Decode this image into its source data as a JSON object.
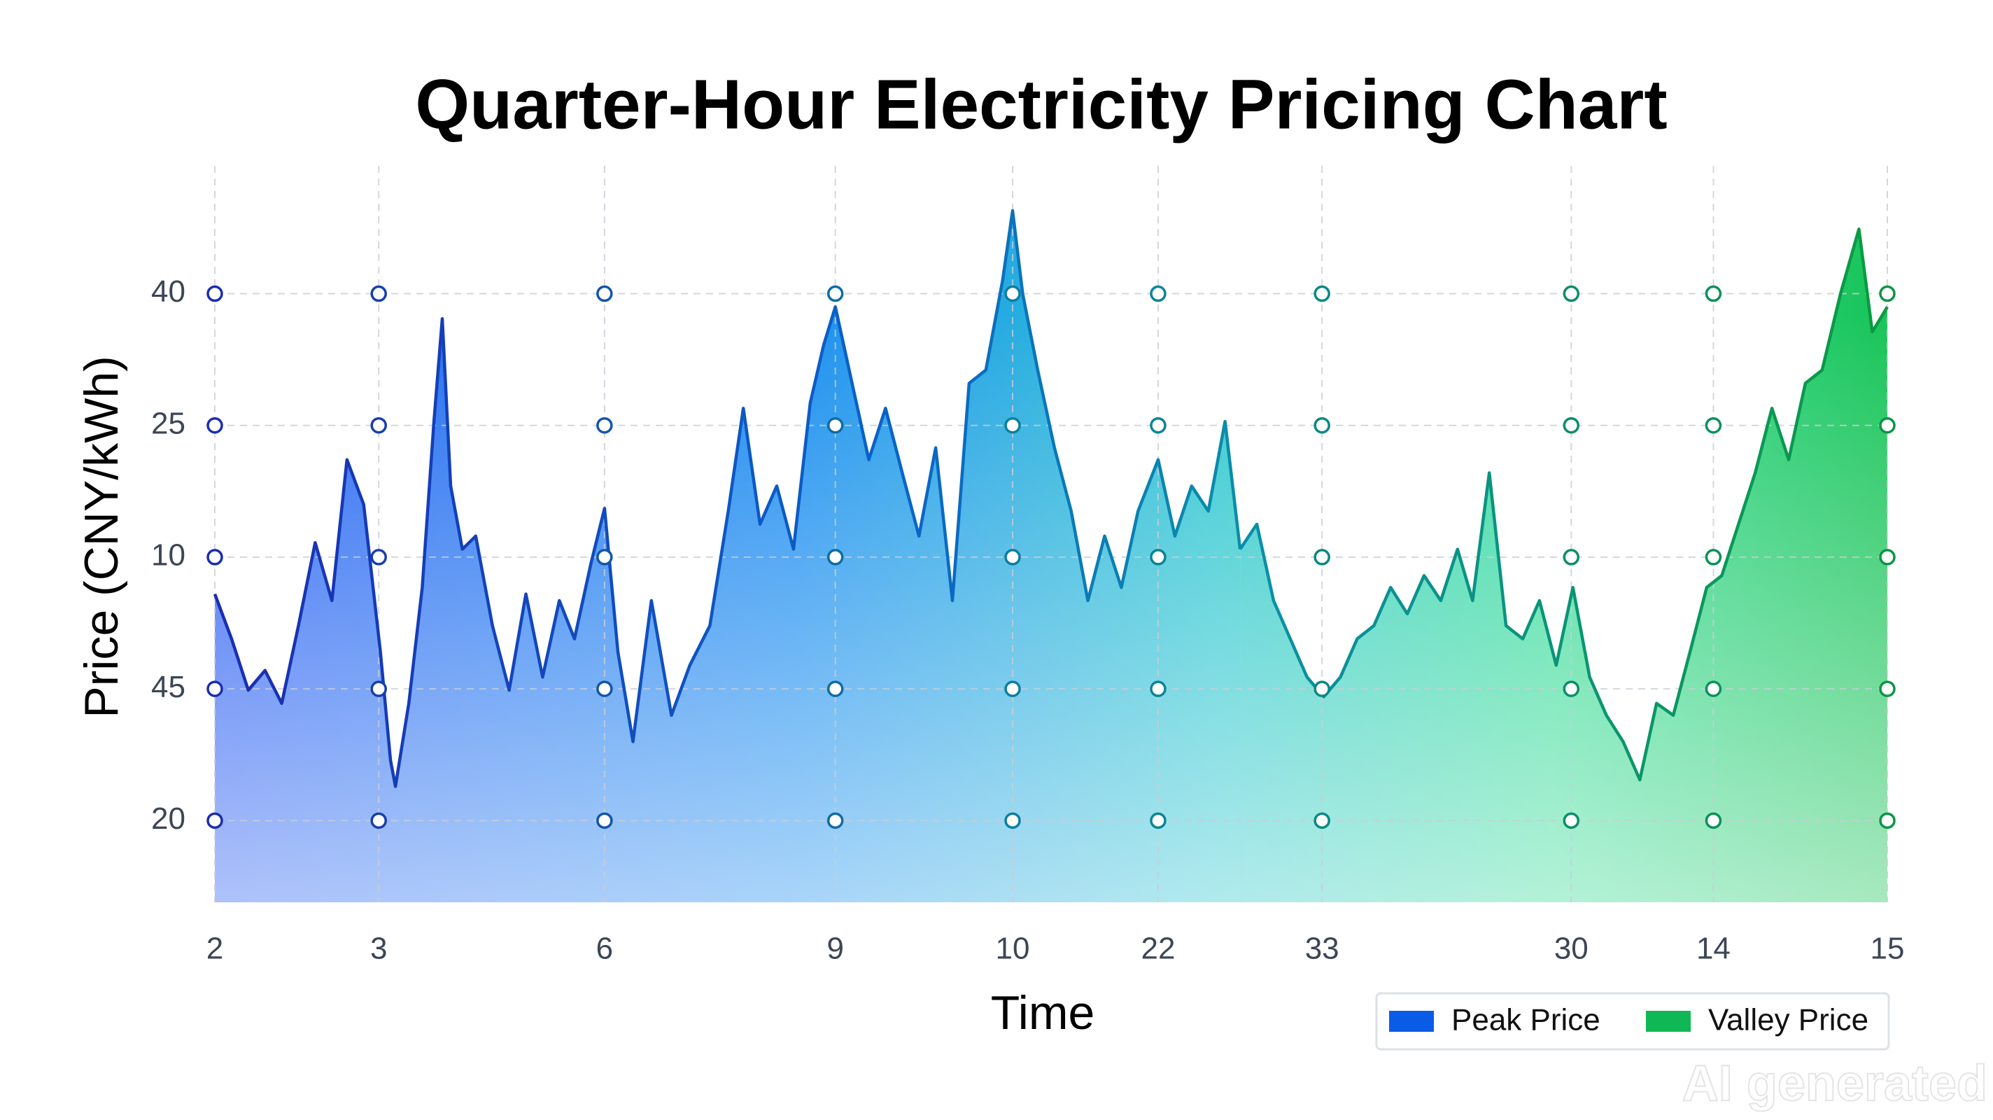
{
  "chart_data": {
    "type": "area",
    "title": "Quarter-Hour Electricity Pricing Chart",
    "xlabel": "Time",
    "ylabel": "Price (CNY/kWh)",
    "xlim": [
      0,
      100
    ],
    "ylim": [
      -0.62,
      4.97
    ],
    "xticks": [
      {
        "value": 0,
        "label": "2"
      },
      {
        "value": 9.8,
        "label": "3"
      },
      {
        "value": 23.3,
        "label": "6"
      },
      {
        "value": 37.1,
        "label": "9"
      },
      {
        "value": 47.7,
        "label": "10"
      },
      {
        "value": 56.4,
        "label": "22"
      },
      {
        "value": 66.2,
        "label": "33"
      },
      {
        "value": 81.1,
        "label": "30"
      },
      {
        "value": 89.6,
        "label": "14"
      },
      {
        "value": 100,
        "label": "15"
      }
    ],
    "yticks": [
      {
        "value": 0,
        "label": "20"
      },
      {
        "value": 1,
        "label": "45"
      },
      {
        "value": 2,
        "label": "10"
      },
      {
        "value": 3,
        "label": "25"
      },
      {
        "value": 4,
        "label": "40"
      }
    ],
    "grid": true,
    "legend": "lower right",
    "series": [
      {
        "name": "Peak Price",
        "color": "#0a5ce6",
        "x": [
          0,
          1,
          2,
          3,
          4,
          5,
          6,
          7,
          7.9,
          8.9,
          9.9,
          10.5,
          10.8,
          11.6,
          12.4,
          13.1,
          13.6,
          14.1,
          14.8,
          15.6,
          16.6,
          17.6,
          18.6,
          19.6,
          20.6,
          21.5,
          22.5,
          23.3,
          24.1,
          25,
          26.1,
          27.3,
          28.4,
          29.6,
          30.7,
          31.6,
          32.6,
          33.6,
          34.6,
          35.6,
          36.4,
          37.1,
          38.1,
          39.1,
          40.1,
          41.1,
          42.1,
          43.1,
          44.1,
          45.1,
          46.1,
          47.1,
          47.7,
          48.3,
          49.2,
          50.2,
          51.2,
          52.2,
          53.2,
          54.2,
          55.2,
          56.4,
          57.4,
          58.4,
          59.4,
          60.4,
          61.3
        ],
        "values": [
          1.72,
          1.38,
          0.99,
          1.14,
          0.89,
          1.48,
          2.11,
          1.67,
          2.74,
          2.4,
          1.28,
          0.46,
          0.26,
          0.89,
          1.77,
          3.03,
          3.81,
          2.54,
          2.06,
          2.16,
          1.48,
          0.99,
          1.72,
          1.09,
          1.67,
          1.38,
          1.96,
          2.37,
          1.28,
          0.6,
          1.67,
          0.8,
          1.18,
          1.48,
          2.35,
          3.13,
          2.25,
          2.54,
          2.06,
          3.17,
          3.61,
          3.9,
          3.32,
          2.74,
          3.13,
          2.64,
          2.16,
          2.83,
          1.67,
          3.32,
          3.42,
          4.1,
          4.63,
          4.0,
          3.42,
          2.83,
          2.35,
          1.67,
          2.16,
          1.77,
          2.35,
          2.74,
          2.16,
          2.54,
          2.35,
          3.03,
          2.06
        ]
      },
      {
        "name": "Valley Price",
        "color": "#10b855",
        "x": [
          61.3,
          62.3,
          63.3,
          64.3,
          65.3,
          66.3,
          67.3,
          68.3,
          69.3,
          70.3,
          71.3,
          72.3,
          73.3,
          74.3,
          75.2,
          76.2,
          77.2,
          78.2,
          79.2,
          80.2,
          81.2,
          82.2,
          83.2,
          84.2,
          85.2,
          86.2,
          87.2,
          88.2,
          89.2,
          90.1,
          91.1,
          92.1,
          93.1,
          94.1,
          95.1,
          96.1,
          97.2,
          98.3,
          99.1,
          100
        ],
        "values": [
          2.06,
          2.25,
          1.67,
          1.38,
          1.09,
          0.94,
          1.09,
          1.38,
          1.48,
          1.77,
          1.57,
          1.86,
          1.67,
          2.06,
          1.67,
          2.64,
          1.48,
          1.38,
          1.67,
          1.18,
          1.77,
          1.09,
          0.8,
          0.6,
          0.31,
          0.89,
          0.8,
          1.28,
          1.77,
          1.86,
          2.25,
          2.64,
          3.13,
          2.74,
          3.32,
          3.42,
          4.0,
          4.49,
          3.71,
          3.9
        ]
      }
    ]
  },
  "watermark": "AI generated"
}
